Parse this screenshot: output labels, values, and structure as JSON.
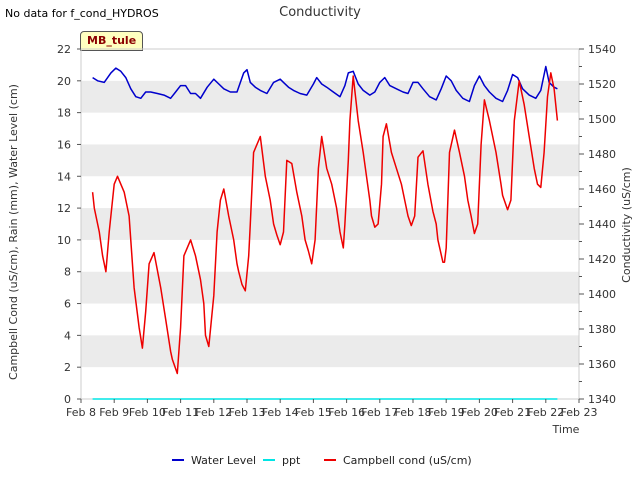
{
  "header": {
    "no_data_note": "No data for f_cond_HYDROS",
    "site_label": "MB_tule"
  },
  "colors": {
    "water_level": "#0000cc",
    "ppt": "#00e5e5",
    "cond": "#ee0000",
    "band": "#ebebeb"
  },
  "chart_data": {
    "type": "line",
    "title": "Conductivity",
    "xlabel": "Time",
    "ylabel_left": "Campbell Cond (uS/cm), Rain (mm), Water Level (cm)",
    "ylabel_right": "Conductivity (uS/cm)",
    "xlim": [
      8,
      23
    ],
    "x_ticks": [
      8,
      9,
      10,
      11,
      12,
      13,
      14,
      15,
      16,
      17,
      18,
      19,
      20,
      21,
      22,
      23
    ],
    "x_tick_labels": [
      "Feb 8",
      "Feb 9",
      "Feb 10",
      "Feb 11",
      "Feb 12",
      "Feb 13",
      "Feb 14",
      "Feb 15",
      "Feb 16",
      "Feb 17",
      "Feb 18",
      "Feb 19",
      "Feb 20",
      "Feb 21",
      "Feb 22",
      "Feb 23"
    ],
    "ylim_left": [
      0,
      22
    ],
    "y_ticks_left": [
      0,
      2,
      4,
      6,
      8,
      10,
      12,
      14,
      16,
      18,
      20,
      22
    ],
    "ylim_right": [
      1340,
      1540
    ],
    "y_ticks_right": [
      1340,
      1360,
      1380,
      1400,
      1420,
      1440,
      1460,
      1480,
      1500,
      1520,
      1540
    ],
    "legend": [
      "Water Level",
      "ppt",
      "Campbell cond (uS/cm)"
    ],
    "legend_position": "bottom-center",
    "series": [
      {
        "name": "Water Level",
        "key": "water_level",
        "axis": "left",
        "x": [
          8.35,
          8.5,
          8.7,
          8.9,
          9.05,
          9.2,
          9.35,
          9.5,
          9.65,
          9.8,
          9.95,
          10.1,
          10.3,
          10.5,
          10.7,
          10.85,
          11.0,
          11.15,
          11.3,
          11.45,
          11.6,
          11.8,
          12.0,
          12.15,
          12.3,
          12.5,
          12.7,
          12.9,
          13.0,
          13.1,
          13.25,
          13.4,
          13.6,
          13.8,
          14.0,
          14.1,
          14.25,
          14.4,
          14.6,
          14.8,
          15.0,
          15.1,
          15.25,
          15.4,
          15.6,
          15.8,
          15.95,
          16.05,
          16.2,
          16.35,
          16.5,
          16.7,
          16.85,
          17.0,
          17.15,
          17.3,
          17.5,
          17.7,
          17.85,
          18.0,
          18.15,
          18.3,
          18.5,
          18.7,
          18.85,
          19.0,
          19.15,
          19.3,
          19.5,
          19.7,
          19.85,
          20.0,
          20.15,
          20.3,
          20.5,
          20.7,
          20.85,
          21.0,
          21.15,
          21.3,
          21.5,
          21.7,
          21.85,
          22.0,
          22.1,
          22.25,
          22.35
        ],
        "values": [
          20.2,
          20.0,
          19.9,
          20.5,
          20.8,
          20.6,
          20.2,
          19.5,
          19.0,
          18.9,
          19.3,
          19.3,
          19.2,
          19.1,
          18.9,
          19.3,
          19.7,
          19.7,
          19.2,
          19.2,
          18.9,
          19.6,
          20.1,
          19.8,
          19.5,
          19.3,
          19.3,
          20.5,
          20.7,
          19.9,
          19.6,
          19.4,
          19.2,
          19.9,
          20.1,
          19.9,
          19.6,
          19.4,
          19.2,
          19.1,
          19.8,
          20.2,
          19.8,
          19.6,
          19.3,
          19.0,
          19.7,
          20.5,
          20.6,
          19.8,
          19.4,
          19.1,
          19.3,
          19.9,
          20.2,
          19.7,
          19.5,
          19.3,
          19.2,
          19.9,
          19.9,
          19.5,
          19.0,
          18.8,
          19.5,
          20.3,
          20.0,
          19.4,
          18.9,
          18.7,
          19.7,
          20.3,
          19.7,
          19.3,
          18.9,
          18.7,
          19.4,
          20.4,
          20.2,
          19.5,
          19.1,
          18.9,
          19.4,
          20.9,
          19.9,
          19.6,
          19.5
        ]
      },
      {
        "name": "ppt",
        "key": "ppt",
        "axis": "left",
        "x": [
          8.35,
          22.35
        ],
        "values": [
          0.0,
          0.0
        ]
      },
      {
        "name": "Campbell cond (uS/cm)",
        "key": "cond",
        "axis": "left",
        "x": [
          8.35,
          8.4,
          8.55,
          8.65,
          8.75,
          8.85,
          9.0,
          9.1,
          9.3,
          9.45,
          9.6,
          9.75,
          9.85,
          9.95,
          10.05,
          10.2,
          10.4,
          10.55,
          10.7,
          10.75,
          10.9,
          11.0,
          11.1,
          11.3,
          11.45,
          11.6,
          11.7,
          11.75,
          11.85,
          12.0,
          12.1,
          12.2,
          12.3,
          12.45,
          12.6,
          12.7,
          12.75,
          12.85,
          12.95,
          13.05,
          13.1,
          13.2,
          13.4,
          13.55,
          13.7,
          13.8,
          13.9,
          14.0,
          14.1,
          14.2,
          14.35,
          14.5,
          14.65,
          14.75,
          14.85,
          14.95,
          15.05,
          15.15,
          15.25,
          15.4,
          15.55,
          15.7,
          15.8,
          15.9,
          15.95,
          16.0,
          16.05,
          16.1,
          16.2,
          16.35,
          16.5,
          16.6,
          16.7,
          16.75,
          16.85,
          16.95,
          17.05,
          17.1,
          17.2,
          17.35,
          17.5,
          17.65,
          17.75,
          17.85,
          17.95,
          18.05,
          18.15,
          18.3,
          18.45,
          18.6,
          18.7,
          18.75,
          18.9,
          18.95,
          19.0,
          19.1,
          19.25,
          19.4,
          19.55,
          19.65,
          19.75,
          19.85,
          19.95,
          20.05,
          20.15,
          20.3,
          20.5,
          20.65,
          20.7,
          20.85,
          20.95,
          21.05,
          21.2,
          21.35,
          21.5,
          21.65,
          21.75,
          21.85,
          21.95,
          22.05,
          22.15,
          22.25,
          22.35
        ],
        "values": [
          13.0,
          12.0,
          10.5,
          9.0,
          8.0,
          10.5,
          13.5,
          14.0,
          13.0,
          11.5,
          7.0,
          4.5,
          3.2,
          5.5,
          8.5,
          9.2,
          7.0,
          5.0,
          3.0,
          2.5,
          1.6,
          4.5,
          9.0,
          10.0,
          9.0,
          7.5,
          6.0,
          4.0,
          3.3,
          6.5,
          10.5,
          12.5,
          13.2,
          11.5,
          10.0,
          8.5,
          8.0,
          7.2,
          6.8,
          9.0,
          11.0,
          15.5,
          16.5,
          14.0,
          12.5,
          11.0,
          10.3,
          9.7,
          10.5,
          15.0,
          14.8,
          13.0,
          11.5,
          10.0,
          9.3,
          8.5,
          10.0,
          14.5,
          16.5,
          14.5,
          13.5,
          12.0,
          10.5,
          9.5,
          11.0,
          13.0,
          15.0,
          17.5,
          20.3,
          17.5,
          15.5,
          14.0,
          12.5,
          11.5,
          10.8,
          11.0,
          13.5,
          16.5,
          17.3,
          15.5,
          14.5,
          13.5,
          12.5,
          11.5,
          10.9,
          11.5,
          15.2,
          15.6,
          13.5,
          11.8,
          11.0,
          10.0,
          8.6,
          8.6,
          9.5,
          15.5,
          16.9,
          15.5,
          14.0,
          12.5,
          11.5,
          10.4,
          11.0,
          16.0,
          18.8,
          17.5,
          15.5,
          13.5,
          12.8,
          11.9,
          12.5,
          17.5,
          20.0,
          18.5,
          16.5,
          14.5,
          13.5,
          13.3,
          15.5,
          19.0,
          20.5,
          19.5,
          17.5
        ]
      }
    ]
  }
}
